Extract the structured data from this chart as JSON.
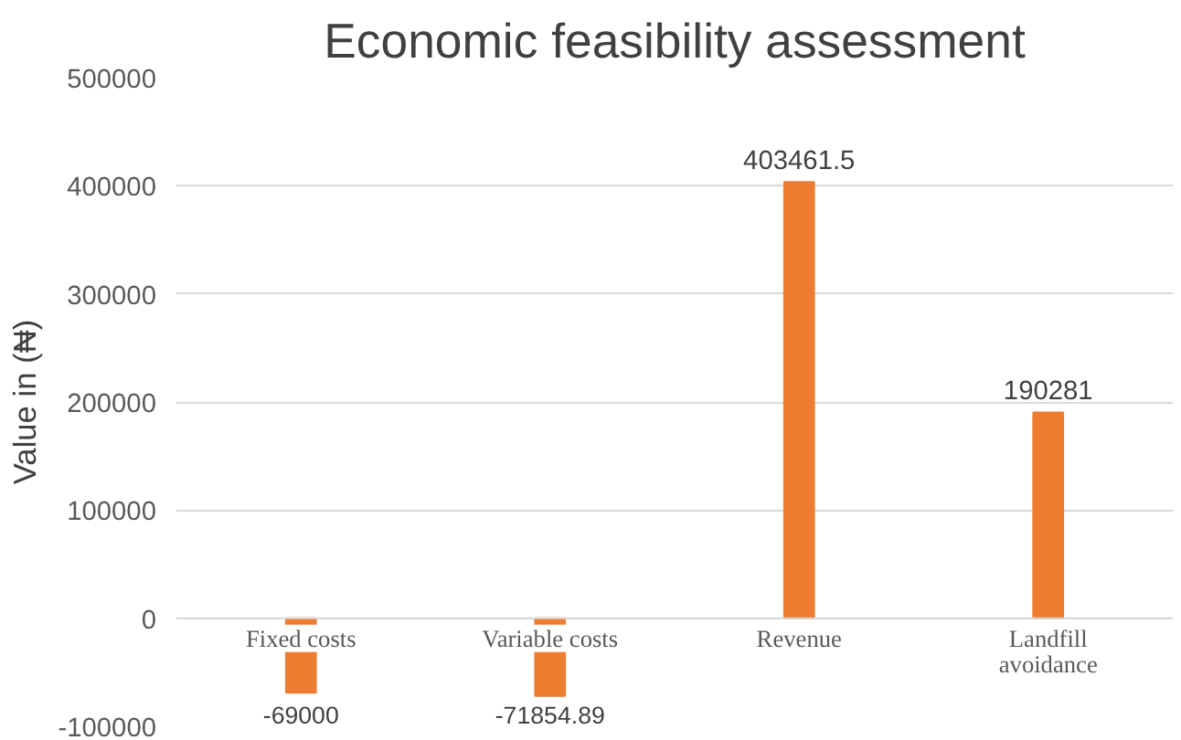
{
  "chart_data": {
    "type": "bar",
    "title": "Economic feasibility assessment",
    "ylabel": "Value in (₦)",
    "categories": [
      "Fixed costs",
      "Variable costs",
      "Revenue",
      "Landfill avoidance"
    ],
    "values": [
      -69000,
      -71854.89,
      403461.5,
      190281
    ],
    "color": "#ed7d31",
    "value_labels": [
      "-69000",
      "-71854.89",
      "403461.5",
      "190281"
    ],
    "ylim": [
      -100000,
      500000
    ],
    "yticks": [
      -100000,
      0,
      100000,
      200000,
      300000,
      400000,
      500000
    ],
    "grid": "y"
  }
}
